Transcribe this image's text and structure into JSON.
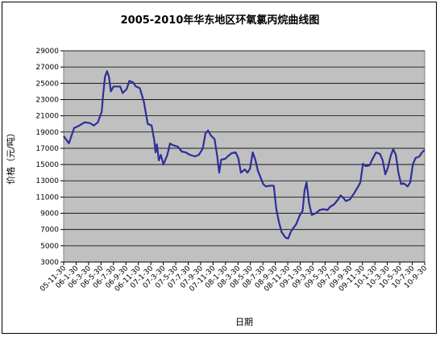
{
  "chart_data": {
    "type": "line",
    "title": "2005-2010年华东地区环氧氯丙烷曲线图",
    "xlabel": "日期",
    "ylabel": "价格（元/吨）",
    "ylim": [
      3000,
      29000
    ],
    "yticks": [
      3000,
      5000,
      7000,
      9000,
      11000,
      13000,
      15000,
      17000,
      19000,
      21000,
      23000,
      25000,
      27000,
      29000
    ],
    "grid": true,
    "plot_background": "#c0c0c0",
    "line_color": "#2e2e9a",
    "x_tick_labels": [
      "05-11-30",
      "06-1-30",
      "06-3-30",
      "06-5-30",
      "06-7-30",
      "06-9-30",
      "06-11-30",
      "07-1-30",
      "07-3-30",
      "07-5-30",
      "07-7-30",
      "07-9-30",
      "07-11-30",
      "08-1-30",
      "08-3-30",
      "08-5-30",
      "08-7-30",
      "08-9-30",
      "08-11-30",
      "09-1-30",
      "09-3-30",
      "09-5-30",
      "09-7-30",
      "09-9-30",
      "09-11-30",
      "10-1-30",
      "10-3-30",
      "10-5-30",
      "10-7-30",
      "10-9-30"
    ],
    "series": [
      {
        "points": [
          [
            0.0,
            18500
          ],
          [
            0.4,
            17600
          ],
          [
            0.8,
            19500
          ],
          [
            1.2,
            19800
          ],
          [
            1.6,
            20200
          ],
          [
            2.0,
            20100
          ],
          [
            2.3,
            19800
          ],
          [
            2.6,
            20200
          ],
          [
            2.9,
            21500
          ],
          [
            3.0,
            23500
          ],
          [
            3.15,
            25800
          ],
          [
            3.3,
            26500
          ],
          [
            3.45,
            25800
          ],
          [
            3.6,
            24000
          ],
          [
            3.8,
            24600
          ],
          [
            4.3,
            24600
          ],
          [
            4.5,
            23800
          ],
          [
            4.8,
            24300
          ],
          [
            5.0,
            25300
          ],
          [
            5.3,
            25100
          ],
          [
            5.5,
            24600
          ],
          [
            5.8,
            24400
          ],
          [
            6.1,
            22800
          ],
          [
            6.4,
            20000
          ],
          [
            6.7,
            19800
          ],
          [
            6.9,
            18000
          ],
          [
            7.0,
            16500
          ],
          [
            7.1,
            17500
          ],
          [
            7.25,
            15500
          ],
          [
            7.4,
            16200
          ],
          [
            7.6,
            15000
          ],
          [
            7.9,
            16200
          ],
          [
            8.1,
            17600
          ],
          [
            8.3,
            17400
          ],
          [
            8.7,
            17200
          ],
          [
            9.0,
            16600
          ],
          [
            9.3,
            16500
          ],
          [
            9.6,
            16200
          ],
          [
            10.0,
            16000
          ],
          [
            10.3,
            16200
          ],
          [
            10.6,
            17000
          ],
          [
            10.8,
            18800
          ],
          [
            11.0,
            19200
          ],
          [
            11.2,
            18600
          ],
          [
            11.5,
            18100
          ],
          [
            11.7,
            16000
          ],
          [
            11.85,
            14000
          ],
          [
            12.0,
            15600
          ],
          [
            12.3,
            15700
          ],
          [
            12.5,
            16000
          ],
          [
            12.8,
            16400
          ],
          [
            13.1,
            16500
          ],
          [
            13.3,
            15800
          ],
          [
            13.5,
            14000
          ],
          [
            13.8,
            14400
          ],
          [
            14.0,
            14000
          ],
          [
            14.2,
            14500
          ],
          [
            14.4,
            16500
          ],
          [
            14.6,
            15600
          ],
          [
            14.8,
            14200
          ],
          [
            15.0,
            13400
          ],
          [
            15.2,
            12600
          ],
          [
            15.4,
            12300
          ],
          [
            15.7,
            12400
          ],
          [
            16.0,
            12400
          ],
          [
            16.2,
            9500
          ],
          [
            16.4,
            7900
          ],
          [
            16.6,
            6700
          ],
          [
            16.9,
            6000
          ],
          [
            17.1,
            5900
          ],
          [
            17.3,
            6700
          ],
          [
            17.5,
            7200
          ],
          [
            17.7,
            7600
          ],
          [
            18.0,
            8800
          ],
          [
            18.2,
            9300
          ],
          [
            18.35,
            11800
          ],
          [
            18.5,
            12800
          ],
          [
            18.7,
            10200
          ],
          [
            18.9,
            8800
          ],
          [
            19.2,
            9000
          ],
          [
            19.5,
            9400
          ],
          [
            19.8,
            9500
          ],
          [
            20.1,
            9400
          ],
          [
            20.3,
            9800
          ],
          [
            20.6,
            10100
          ],
          [
            20.9,
            10700
          ],
          [
            21.1,
            11200
          ],
          [
            21.3,
            10900
          ],
          [
            21.5,
            10500
          ],
          [
            21.8,
            10700
          ],
          [
            22.1,
            11400
          ],
          [
            22.4,
            12200
          ],
          [
            22.6,
            12800
          ],
          [
            22.8,
            15100
          ],
          [
            23.0,
            14800
          ],
          [
            23.3,
            14900
          ],
          [
            23.5,
            15600
          ],
          [
            23.8,
            16500
          ],
          [
            24.1,
            16300
          ],
          [
            24.3,
            15500
          ],
          [
            24.5,
            13800
          ],
          [
            24.7,
            14600
          ],
          [
            24.9,
            16000
          ],
          [
            25.1,
            16900
          ],
          [
            25.3,
            16200
          ],
          [
            25.5,
            14000
          ],
          [
            25.7,
            12600
          ],
          [
            25.9,
            12700
          ],
          [
            26.2,
            12300
          ],
          [
            26.4,
            12800
          ],
          [
            26.6,
            15000
          ],
          [
            26.8,
            15800
          ],
          [
            27.1,
            16000
          ],
          [
            27.3,
            16500
          ],
          [
            27.5,
            16800
          ]
        ]
      }
    ]
  }
}
